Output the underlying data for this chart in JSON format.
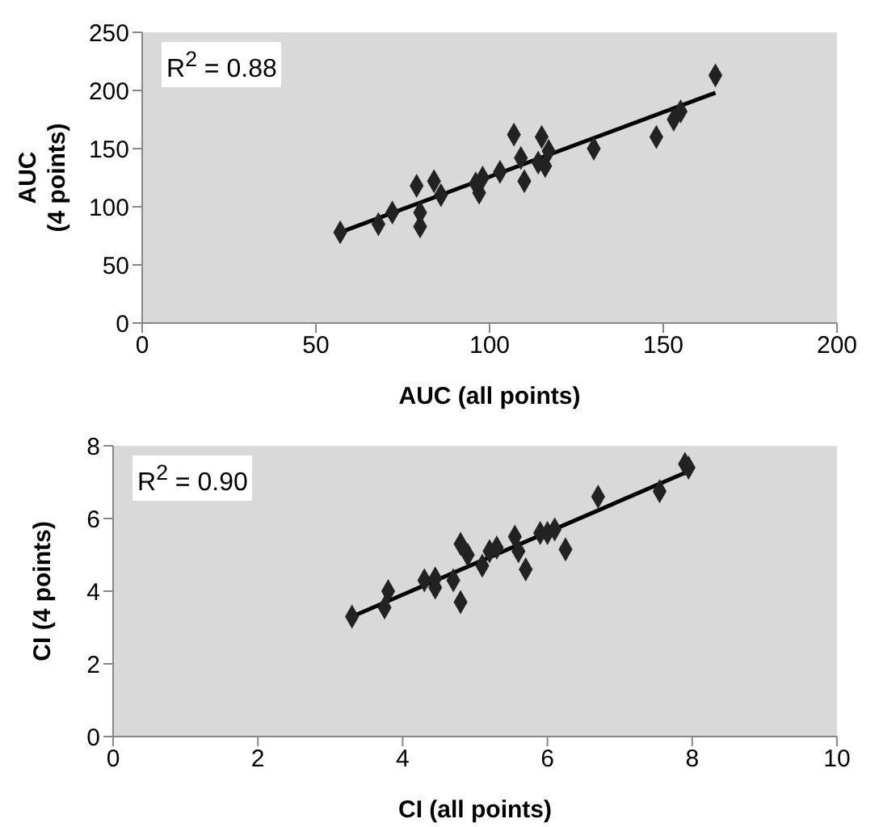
{
  "chart_data": [
    {
      "type": "scatter",
      "xlabel": "AUC  (all points)",
      "ylabel": "AUC\n(4 points)",
      "annotations": [
        "R$^{2}$ = 0.88"
      ],
      "xlim": [
        0,
        200
      ],
      "xticks": [
        0,
        50,
        100,
        150,
        200
      ],
      "ylim": [
        0,
        250
      ],
      "yticks": [
        0,
        50,
        100,
        150,
        200,
        250
      ],
      "grid": false,
      "marker": "diamond",
      "series": [
        {
          "color": "#222222",
          "x": [
            57,
            68,
            72,
            79,
            80,
            80,
            84,
            86,
            96,
            97,
            98,
            103,
            107,
            109,
            110,
            114,
            115,
            116,
            117,
            130,
            148,
            153,
            155,
            165
          ],
          "values": [
            78,
            85,
            95,
            118,
            95,
            83,
            122,
            110,
            120,
            112,
            125,
            130,
            162,
            142,
            122,
            138,
            160,
            135,
            148,
            150,
            160,
            175,
            182,
            213
          ]
        },
        {
          "type": "line",
          "marker": "none",
          "color": "#000000",
          "x": [
            57,
            165
          ],
          "values": [
            78,
            198
          ]
        }
      ]
    },
    {
      "type": "scatter",
      "xlabel": "CI (all points)",
      "ylabel": "CI (4 points)",
      "annotations": [
        "R$^{2}$ = 0.90"
      ],
      "xlim": [
        0,
        10
      ],
      "xticks": [
        0,
        2,
        4,
        6,
        8,
        10
      ],
      "ylim": [
        0,
        8
      ],
      "yticks": [
        0,
        2,
        4,
        6,
        8
      ],
      "grid": false,
      "marker": "diamond",
      "series": [
        {
          "color": "#222222",
          "x": [
            3.3,
            3.75,
            3.8,
            4.3,
            4.45,
            4.45,
            4.7,
            4.8,
            4.8,
            4.9,
            5.1,
            5.2,
            5.3,
            5.55,
            5.6,
            5.7,
            5.9,
            6.0,
            6.1,
            6.25,
            6.7,
            7.55,
            7.9,
            7.95
          ],
          "values": [
            3.3,
            3.55,
            4.0,
            4.3,
            4.35,
            4.1,
            4.3,
            3.7,
            5.3,
            5.0,
            4.7,
            5.1,
            5.2,
            5.5,
            5.1,
            4.6,
            5.6,
            5.6,
            5.7,
            5.15,
            6.6,
            6.75,
            7.5,
            7.4
          ]
        },
        {
          "type": "line",
          "marker": "none",
          "color": "#000000",
          "x": [
            3.3,
            7.95
          ],
          "values": [
            3.3,
            7.3
          ]
        }
      ]
    }
  ]
}
